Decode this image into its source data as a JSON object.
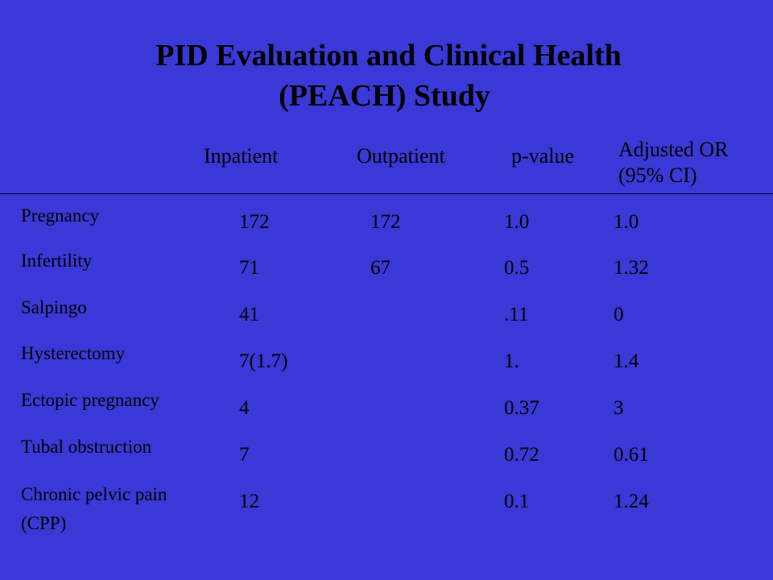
{
  "slide": {
    "background_color": "#3a38d6",
    "text_color": "#000000",
    "title_line1": "PID Evaluation and Clinical Health",
    "title_line2": "(PEACH) Study"
  },
  "table": {
    "headers": {
      "inpatient": "Inpatient",
      "outpatient": "Outpatient",
      "pvalue": "p-value",
      "adjusted_line1": "Adjusted OR",
      "adjusted_line2": "(95% CI)"
    },
    "rows": [
      {
        "label": "Pregnancy",
        "inpatient": "172",
        "outpatient": "172",
        "pvalue": "1.0",
        "adjusted_or": "1.0"
      },
      {
        "label": "Infertility",
        "inpatient": "71",
        "outpatient": "67",
        "pvalue": "0.5",
        "adjusted_or": "1.32"
      },
      {
        "label": "Salpingo",
        "inpatient": "41",
        "outpatient": "",
        "pvalue": ".11",
        "adjusted_or": "0"
      },
      {
        "label": "Hysterectomy",
        "inpatient": "7(1.7)",
        "outpatient": "",
        "pvalue": "1.",
        "adjusted_or": "1.4"
      },
      {
        "label": "Ectopic pregnancy",
        "inpatient": "4",
        "outpatient": "",
        "pvalue": "0.37",
        "adjusted_or": "3"
      },
      {
        "label": "Tubal obstruction",
        "inpatient": "7",
        "outpatient": "",
        "pvalue": "0.72",
        "adjusted_or": "0.61"
      },
      {
        "label_line1": "Chronic pelvic pain",
        "label_line2": "(CPP)",
        "inpatient": "12",
        "outpatient": "",
        "pvalue": "0.1",
        "adjusted_or": "1.24"
      }
    ]
  }
}
